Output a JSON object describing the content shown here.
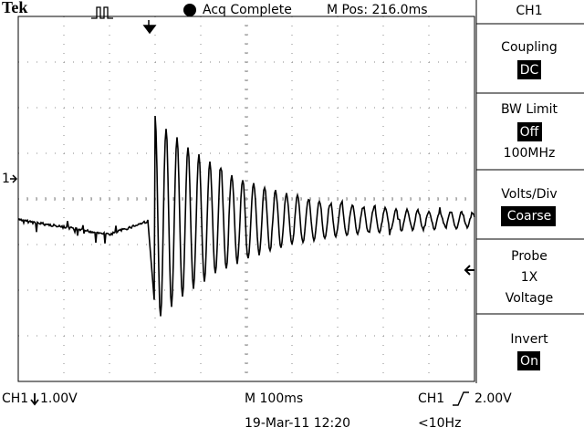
{
  "header": {
    "brand": "Tek",
    "status": "Acq Complete",
    "position": "M Pos: 216.0ms"
  },
  "menu": {
    "title": "CH1",
    "items": [
      {
        "label": "Coupling",
        "value": "DC"
      },
      {
        "label": "BW Limit",
        "value": "Off",
        "extra": "100MHz"
      },
      {
        "label": "Volts/Div",
        "value": "Coarse"
      },
      {
        "label": "Probe",
        "value": "1X",
        "extra": "Voltage"
      },
      {
        "label": "Invert",
        "value": "On"
      }
    ]
  },
  "screen": {
    "channel_marker": "1"
  },
  "footer": {
    "channel": "CH1",
    "scale": "1.00V",
    "timebase": "M 100ms",
    "date": "19-Mar-11 12:20",
    "trigger_source": "CH1",
    "trigger_level": "2.00V",
    "trigger_freq": "<10Hz"
  }
}
